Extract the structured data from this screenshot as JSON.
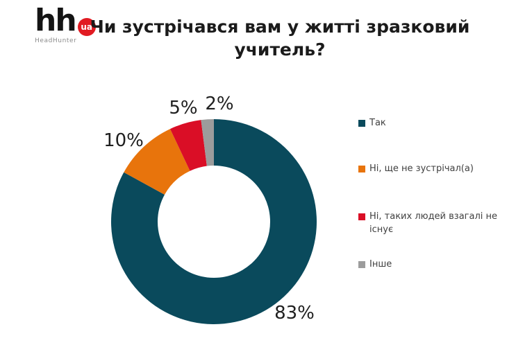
{
  "logo": {
    "hh": "hh",
    "ua": "ua",
    "subtitle": "HeadHunter"
  },
  "header": {
    "title_lines": [
      "Чи зустрічався вам у житті зразковий",
      "учитель?"
    ]
  },
  "chart_data": {
    "type": "pie",
    "subtype": "donut",
    "title": "Чи зустрічався вам у житті зразковий учитель?",
    "unit": "%",
    "legend_position": "right",
    "direction": "clockwise",
    "start_angle_deg": 0,
    "inner_radius_ratio": 0.55,
    "segments": [
      {
        "label": "Так",
        "value": 83,
        "pct_label": "83%",
        "color": "#0a4a5c"
      },
      {
        "label": "Ні, ще не зустрічал(а)",
        "value": 10,
        "pct_label": "10%",
        "color": "#e8740c"
      },
      {
        "label": "Ні, таких людей взагалі не існує",
        "value": 5,
        "pct_label": "5%",
        "color": "#da0e26"
      },
      {
        "label": "Інше",
        "value": 2,
        "pct_label": "2%",
        "color": "#9c9c9c"
      }
    ]
  }
}
